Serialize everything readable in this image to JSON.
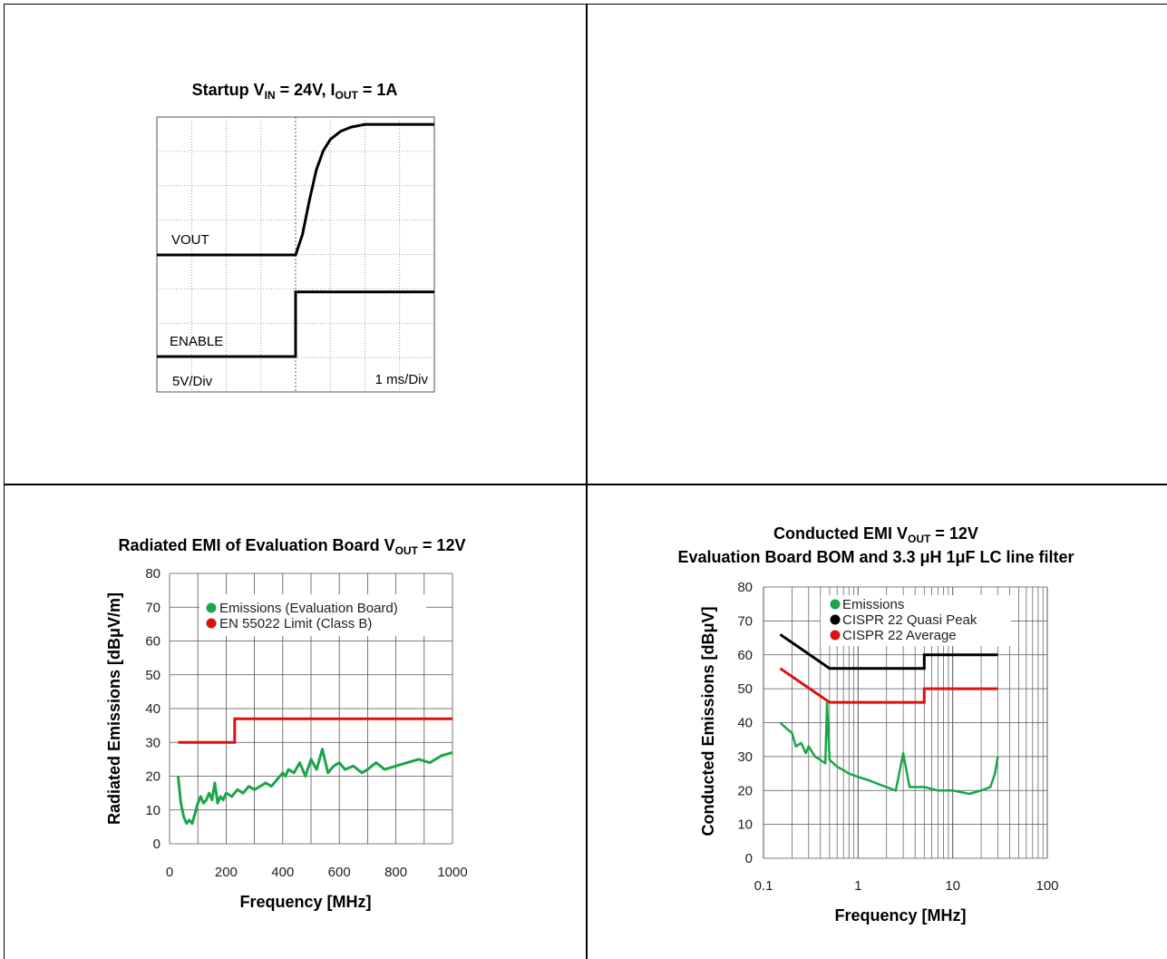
{
  "startup": {
    "title_main": "Startup V",
    "title_sub1": "IN",
    "title_mid": " = 24V, I",
    "title_sub2": "OUT",
    "title_end": " = 1A",
    "vout_label": "VOUT",
    "enable_label": "ENABLE",
    "vdiv_label": "5V/Div",
    "tdiv_label": "1 ms/Div"
  },
  "radiated": {
    "title_main": "Radiated EMI of Evaluation Board V",
    "title_sub": "OUT",
    "title_end": " = 12V",
    "legend": [
      "Emissions (Evaluation Board)",
      "EN 55022 Limit (Class B)"
    ]
  },
  "conducted": {
    "title_line1_main": "Conducted EMI  V",
    "title_line1_sub": "OUT",
    "title_line1_end": " = 12V",
    "title_line2": "Evaluation Board BOM and 3.3 μH 1μF LC line filter",
    "legend": [
      "Emissions",
      "CISPR 22 Quasi Peak",
      "CISPR 22 Average"
    ]
  },
  "colors": {
    "emissions": "#1aa54a",
    "limit_red": "#dd1111",
    "quasi_black": "#000000",
    "grid": "#555555"
  },
  "chart_data": [
    {
      "type": "line",
      "title": "Startup VIN = 24V, IOUT = 1A",
      "x_unit": "ms",
      "series": [
        {
          "name": "VOUT",
          "x": [
            -4,
            0,
            0.2,
            0.4,
            0.6,
            0.8,
            1.0,
            1.3,
            1.6,
            2.0,
            4
          ],
          "y": [
            0,
            0,
            1.5,
            4.0,
            6.2,
            7.6,
            8.4,
            9.0,
            9.3,
            9.5,
            9.5
          ]
        },
        {
          "name": "ENABLE",
          "x": [
            -4,
            0,
            0,
            4
          ],
          "y": [
            0,
            0,
            4.7,
            4.7
          ]
        }
      ]
    },
    {
      "type": "line",
      "title": "Radiated EMI of Evaluation Board VOUT = 12V",
      "xlabel": "Frequency [MHz]",
      "ylabel": "Radiated Emissions [dBμV/m]",
      "xlim": [
        0,
        1000
      ],
      "ylim": [
        0,
        80
      ],
      "xticks": [
        0,
        200,
        400,
        600,
        800,
        1000
      ],
      "yticks": [
        0,
        10,
        20,
        30,
        40,
        50,
        60,
        70,
        80
      ],
      "series": [
        {
          "name": "Emissions (Evaluation Board)",
          "x": [
            30,
            40,
            50,
            60,
            70,
            80,
            90,
            100,
            110,
            120,
            130,
            140,
            150,
            160,
            170,
            180,
            190,
            200,
            220,
            240,
            260,
            280,
            300,
            320,
            340,
            360,
            380,
            400,
            410,
            420,
            440,
            460,
            480,
            500,
            520,
            540,
            560,
            580,
            600,
            620,
            650,
            680,
            700,
            730,
            760,
            800,
            840,
            880,
            920,
            960,
            1000
          ],
          "y": [
            20,
            12,
            8,
            6,
            7,
            6,
            9,
            12,
            14,
            12,
            13,
            15,
            13,
            18,
            12,
            14,
            13,
            15,
            14,
            16,
            15,
            17,
            16,
            17,
            18,
            17,
            19,
            21,
            20,
            22,
            21,
            24,
            20,
            25,
            22,
            28,
            21,
            23,
            24,
            22,
            23,
            21,
            22,
            24,
            22,
            23,
            24,
            25,
            24,
            26,
            27
          ]
        },
        {
          "name": "EN 55022 Limit (Class B)",
          "x": [
            30,
            230,
            230,
            1000
          ],
          "y": [
            30,
            30,
            37,
            37
          ]
        }
      ]
    },
    {
      "type": "line",
      "title": "Conducted EMI VOUT = 12V Evaluation Board BOM and 3.3 μH 1μF LC line filter",
      "xlabel": "Frequency [MHz]",
      "ylabel": "Conducted Emissions [dBμV]",
      "xscale": "log",
      "xlim": [
        0.1,
        100
      ],
      "ylim": [
        0,
        80
      ],
      "xticks": [
        0.1,
        1,
        10,
        100
      ],
      "yticks": [
        0,
        10,
        20,
        30,
        40,
        50,
        60,
        70,
        80
      ],
      "series": [
        {
          "name": "Emissions",
          "x": [
            0.15,
            0.18,
            0.2,
            0.22,
            0.25,
            0.28,
            0.3,
            0.35,
            0.4,
            0.45,
            0.47,
            0.5,
            0.6,
            0.7,
            0.8,
            1.0,
            1.3,
            1.6,
            2.0,
            2.5,
            3.0,
            3.5,
            4.0,
            5.0,
            7.0,
            10,
            15,
            20,
            25,
            28,
            30
          ],
          "y": [
            40,
            38,
            37,
            33,
            34,
            31,
            33,
            30,
            29,
            28,
            46,
            29,
            27,
            26,
            25,
            24,
            23,
            22,
            21,
            20,
            31,
            21,
            21,
            21,
            20,
            20,
            19,
            20,
            21,
            25,
            30
          ]
        },
        {
          "name": "CISPR 22 Quasi Peak",
          "x": [
            0.15,
            0.5,
            5,
            5,
            30
          ],
          "y": [
            66,
            56,
            56,
            60,
            60
          ]
        },
        {
          "name": "CISPR 22 Average",
          "x": [
            0.15,
            0.5,
            5,
            5,
            30
          ],
          "y": [
            56,
            46,
            46,
            50,
            50
          ]
        }
      ]
    }
  ]
}
